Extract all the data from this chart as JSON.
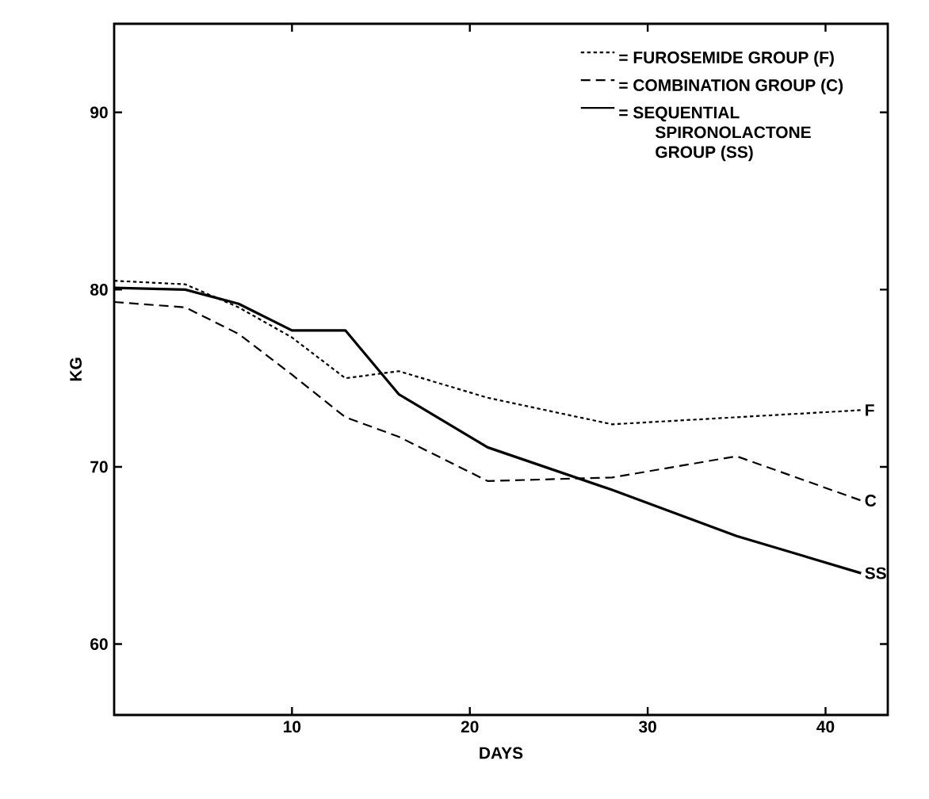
{
  "chart_data": {
    "type": "line",
    "xlabel": "DAYS",
    "ylabel": "KG",
    "xlim": [
      0,
      43.5
    ],
    "ylim": [
      56,
      95
    ],
    "xticks": [
      10,
      20,
      30,
      40
    ],
    "yticks": [
      60,
      70,
      80,
      90
    ],
    "x": [
      0,
      4,
      7,
      10,
      13,
      16,
      21,
      28,
      35,
      42
    ],
    "series": [
      {
        "name": "= FUROSEMIDE GROUP (F)",
        "color": "#000000",
        "line_style": "dotted",
        "values": [
          80.5,
          80.3,
          79.0,
          77.3,
          75.0,
          75.4,
          73.9,
          72.4,
          72.8,
          73.2
        ]
      },
      {
        "name": "= COMBINATION GROUP (C)",
        "color": "#000000",
        "line_style": "dashed",
        "values": [
          79.3,
          79.0,
          77.5,
          75.2,
          72.8,
          71.7,
          69.2,
          69.4,
          70.6,
          68.1
        ]
      },
      {
        "name": "= SEQUENTIAL SPIRONOLACTONE GROUP (SS)",
        "color": "#000000",
        "line_style": "solid",
        "values": [
          80.1,
          80.0,
          79.2,
          77.7,
          77.7,
          74.1,
          71.1,
          68.7,
          66.1,
          64.0
        ]
      }
    ],
    "annotations": [
      "F",
      "C",
      "SS"
    ],
    "legend": "top right",
    "grid": false,
    "marker": "none"
  }
}
